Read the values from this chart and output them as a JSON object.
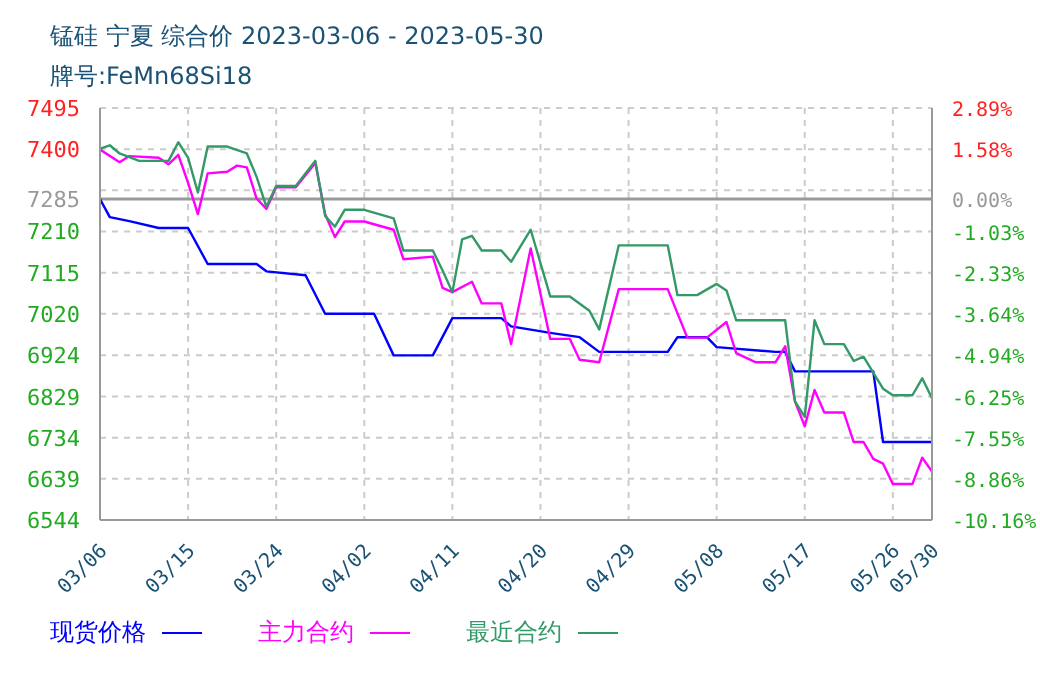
{
  "chart_data": {
    "type": "line",
    "title": "锰硅 宁夏 综合价 2023-03-06 - 2023-05-30",
    "subtitle": "牌号:FeMn68Si18",
    "xlim": [
      "2023-03-06",
      "2023-05-30"
    ],
    "xticks": [
      {
        "value": "2023-03-06",
        "label": "03/06"
      },
      {
        "value": "2023-03-15",
        "label": "03/15"
      },
      {
        "value": "2023-03-24",
        "label": "03/24"
      },
      {
        "value": "2023-04-02",
        "label": "04/02"
      },
      {
        "value": "2023-04-11",
        "label": "04/11"
      },
      {
        "value": "2023-04-20",
        "label": "04/20"
      },
      {
        "value": "2023-04-29",
        "label": "04/29"
      },
      {
        "value": "2023-05-08",
        "label": "05/08"
      },
      {
        "value": "2023-05-17",
        "label": "05/17"
      },
      {
        "value": "2023-05-26",
        "label": "05/26"
      },
      {
        "value": "2023-05-30",
        "label": "05/30"
      }
    ],
    "ylim": [
      6544,
      7495
    ],
    "yticks": [
      7495,
      7400,
      {
        "value": 7305,
        "label": null
      },
      7285,
      7210,
      7115,
      7020,
      6924,
      6829,
      6734,
      6639,
      6544
    ],
    "y2lim": [
      -10.16,
      2.89
    ],
    "y2ticks": [
      {
        "value": 2.89,
        "label": "2.89%"
      },
      {
        "value": 1.58,
        "label": "1.58%"
      },
      {
        "value": 0,
        "label": "0.00%"
      },
      {
        "value": -1.03,
        "label": "-1.03%"
      },
      {
        "value": -2.33,
        "label": "-2.33%"
      },
      {
        "value": -3.64,
        "label": "-3.64%"
      },
      {
        "value": -4.94,
        "label": "-4.94%"
      },
      {
        "value": -6.25,
        "label": "-6.25%"
      },
      {
        "value": -7.55,
        "label": "-7.55%"
      },
      {
        "value": -8.86,
        "label": "-8.86%"
      },
      {
        "value": -10.16,
        "label": "-10.16%"
      }
    ],
    "ref_lines": [
      {
        "axis": "y",
        "value": 7285,
        "color": "#999999"
      }
    ],
    "grid": true,
    "legend": "bottom",
    "series": [
      {
        "name": "现货价格",
        "color": "#0000ff",
        "x": [
          "2023-03-06",
          "2023-03-07",
          "2023-03-09",
          "2023-03-12",
          "2023-03-15",
          "2023-03-17",
          "2023-03-22",
          "2023-03-23",
          "2023-03-27",
          "2023-03-29",
          "2023-04-03",
          "2023-04-05",
          "2023-04-09",
          "2023-04-11",
          "2023-04-16",
          "2023-04-17",
          "2023-04-21",
          "2023-04-24",
          "2023-04-26",
          "2023-05-03",
          "2023-05-04",
          "2023-05-07",
          "2023-05-08",
          "2023-05-14",
          "2023-05-15",
          "2023-05-16",
          "2023-05-24",
          "2023-05-25",
          "2023-05-30"
        ],
        "values": [
          7285,
          7243,
          7234,
          7218,
          7218,
          7135,
          7135,
          7118,
          7109,
          7020,
          7020,
          6924,
          6924,
          7010,
          7010,
          6991,
          6976,
          6966,
          6932,
          6932,
          6966,
          6966,
          6943,
          6932,
          6932,
          6887,
          6887,
          6724,
          6724
        ]
      },
      {
        "name": "主力合约",
        "color": "#ff00ff",
        "x": [
          "2023-03-06",
          "2023-03-08",
          "2023-03-09",
          "2023-03-12",
          "2023-03-13",
          "2023-03-14",
          "2023-03-15",
          "2023-03-16",
          "2023-03-17",
          "2023-03-19",
          "2023-03-20",
          "2023-03-21",
          "2023-03-22",
          "2023-03-23",
          "2023-03-24",
          "2023-03-26",
          "2023-03-28",
          "2023-03-29",
          "2023-03-30",
          "2023-03-31",
          "2023-04-02",
          "2023-04-05",
          "2023-04-06",
          "2023-04-09",
          "2023-04-10",
          "2023-04-11",
          "2023-04-13",
          "2023-04-14",
          "2023-04-16",
          "2023-04-17",
          "2023-04-19",
          "2023-04-21",
          "2023-04-23",
          "2023-04-24",
          "2023-04-26",
          "2023-04-28",
          "2023-05-03",
          "2023-05-05",
          "2023-05-07",
          "2023-05-09",
          "2023-05-10",
          "2023-05-12",
          "2023-05-14",
          "2023-05-15",
          "2023-05-16",
          "2023-05-17",
          "2023-05-18",
          "2023-05-19",
          "2023-05-21",
          "2023-05-22",
          "2023-05-23",
          "2023-05-24",
          "2023-05-25",
          "2023-05-26",
          "2023-05-28",
          "2023-05-29",
          "2023-05-30"
        ],
        "values": [
          7399,
          7370,
          7384,
          7380,
          7365,
          7387,
          7322,
          7250,
          7344,
          7348,
          7362,
          7358,
          7286,
          7262,
          7312,
          7312,
          7368,
          7250,
          7197,
          7233,
          7233,
          7214,
          7146,
          7152,
          7080,
          7070,
          7094,
          7044,
          7044,
          6950,
          7171,
          6962,
          6962,
          6914,
          6908,
          7077,
          7077,
          6965,
          6965,
          7001,
          6929,
          6908,
          6908,
          6945,
          6818,
          6760,
          6844,
          6792,
          6792,
          6724,
          6724,
          6685,
          6674,
          6627,
          6627,
          6688,
          6656
        ]
      },
      {
        "name": "最近合约",
        "color": "#339966",
        "x": [
          "2023-03-06",
          "2023-03-07",
          "2023-03-08",
          "2023-03-10",
          "2023-03-13",
          "2023-03-14",
          "2023-03-15",
          "2023-03-16",
          "2023-03-17",
          "2023-03-19",
          "2023-03-21",
          "2023-03-22",
          "2023-03-23",
          "2023-03-24",
          "2023-03-26",
          "2023-03-28",
          "2023-03-29",
          "2023-03-30",
          "2023-03-31",
          "2023-04-02",
          "2023-04-05",
          "2023-04-06",
          "2023-04-09",
          "2023-04-10",
          "2023-04-11",
          "2023-04-12",
          "2023-04-13",
          "2023-04-14",
          "2023-04-16",
          "2023-04-17",
          "2023-04-19",
          "2023-04-21",
          "2023-04-23",
          "2023-04-25",
          "2023-04-26",
          "2023-04-28",
          "2023-05-03",
          "2023-05-04",
          "2023-05-06",
          "2023-05-08",
          "2023-05-09",
          "2023-05-10",
          "2023-05-15",
          "2023-05-16",
          "2023-05-17",
          "2023-05-18",
          "2023-05-19",
          "2023-05-21",
          "2023-05-22",
          "2023-05-23",
          "2023-05-25",
          "2023-05-26",
          "2023-05-28",
          "2023-05-29",
          "2023-05-30"
        ],
        "values": [
          7401,
          7409,
          7390,
          7373,
          7373,
          7416,
          7380,
          7300,
          7406,
          7406,
          7390,
          7336,
          7267,
          7315,
          7315,
          7373,
          7246,
          7221,
          7260,
          7260,
          7240,
          7166,
          7166,
          7120,
          7070,
          7192,
          7200,
          7166,
          7166,
          7140,
          7214,
          7060,
          7060,
          7027,
          6984,
          7178,
          7178,
          7063,
          7063,
          7089,
          7074,
          7005,
          7005,
          6818,
          6782,
          7005,
          6950,
          6950,
          6911,
          6921,
          6847,
          6832,
          6832,
          6871,
          6825
        ]
      }
    ]
  }
}
